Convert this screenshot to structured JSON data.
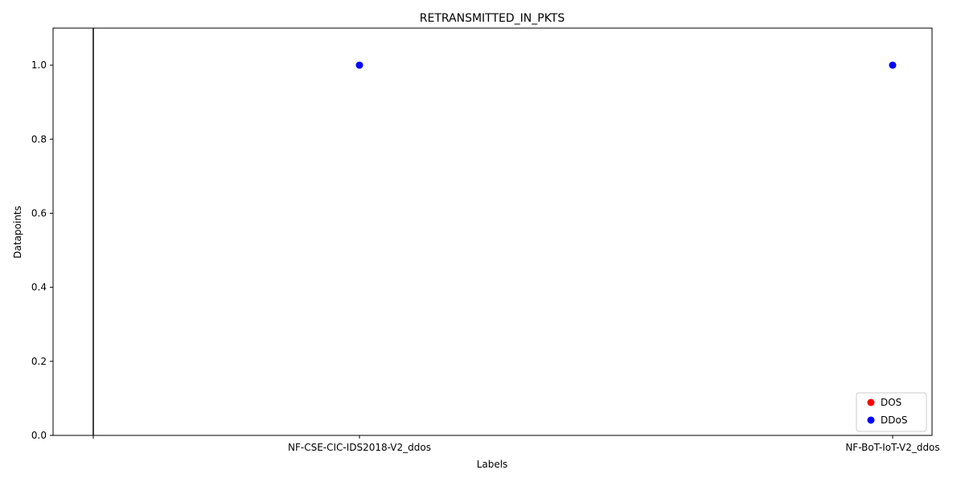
{
  "chart_data": {
    "type": "scatter",
    "title": "RETRANSMITTED_IN_PKTS",
    "xlabel": "Labels",
    "ylabel": "Datapoints",
    "categories": [
      "NF-CSE-CIC-IDS2018-V2_ddos",
      "NF-BoT-IoT-V2_ddos"
    ],
    "x_categories_extent": [
      "",
      "NF-CSE-CIC-IDS2018-V2_ddos",
      "NF-BoT-IoT-V2_ddos"
    ],
    "ylim": [
      0,
      1.1
    ],
    "yticks": [
      0.0,
      0.2,
      0.4,
      0.6,
      0.8,
      1.0
    ],
    "ytick_labels": [
      "0.0",
      "0.2",
      "0.4",
      "0.6",
      "0.8",
      "1.0"
    ],
    "grid": false,
    "legend_position": "bottom-right",
    "series": [
      {
        "name": "DOS",
        "color": "#ff0000",
        "points": []
      },
      {
        "name": "DDoS",
        "color": "#0000ff",
        "points": [
          {
            "x": "NF-CSE-CIC-IDS2018-V2_ddos",
            "y": 1.0
          },
          {
            "x": "NF-BoT-IoT-V2_ddos",
            "y": 1.0
          }
        ]
      }
    ],
    "vertical_line": {
      "at_category_index": 0,
      "color": "#000000"
    }
  }
}
